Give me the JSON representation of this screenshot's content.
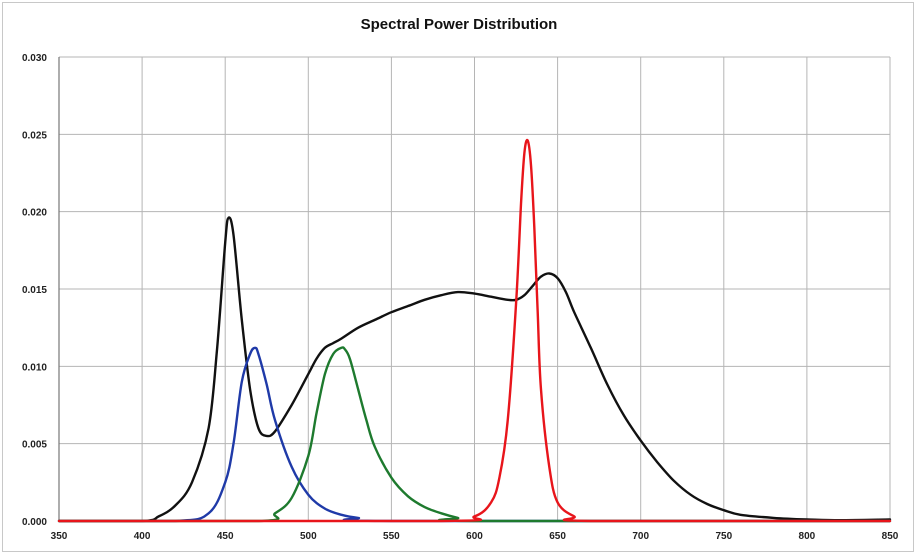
{
  "chart_data": {
    "type": "line",
    "title": "Spectral Power Distribution",
    "xlabel": "",
    "ylabel": "",
    "xlim": [
      350,
      850
    ],
    "ylim": [
      0,
      0.03
    ],
    "x_ticks": [
      350,
      400,
      450,
      500,
      550,
      600,
      650,
      700,
      750,
      800,
      850
    ],
    "y_ticks": [
      "0.000",
      "0.005",
      "0.010",
      "0.015",
      "0.020",
      "0.025",
      "0.030"
    ],
    "grid": true,
    "legend": "none",
    "series": [
      {
        "color": "#111111",
        "x": [
          350,
          400,
          410,
          420,
          430,
          440,
          445,
          450,
          452,
          455,
          460,
          465,
          470,
          475,
          480,
          490,
          500,
          505,
          510,
          515,
          520,
          530,
          540,
          550,
          560,
          570,
          580,
          590,
          600,
          610,
          620,
          625,
          630,
          635,
          640,
          645,
          650,
          655,
          660,
          670,
          680,
          690,
          700,
          710,
          720,
          730,
          740,
          750,
          760,
          780,
          800,
          820,
          850
        ],
        "y": [
          0,
          0,
          0.0003,
          0.001,
          0.0025,
          0.006,
          0.011,
          0.018,
          0.0196,
          0.0185,
          0.013,
          0.0085,
          0.006,
          0.0055,
          0.0058,
          0.0075,
          0.0095,
          0.0105,
          0.0112,
          0.0115,
          0.0118,
          0.0125,
          0.013,
          0.0135,
          0.0139,
          0.0143,
          0.0146,
          0.0148,
          0.0147,
          0.0145,
          0.0143,
          0.0143,
          0.0146,
          0.0152,
          0.0158,
          0.016,
          0.0157,
          0.0148,
          0.0135,
          0.0112,
          0.0088,
          0.0068,
          0.0052,
          0.0038,
          0.0026,
          0.0017,
          0.0011,
          0.0007,
          0.0004,
          0.0002,
          0.0001,
          5e-05,
          0.0001
        ]
      },
      {
        "color": "#1f3aa8",
        "x": [
          350,
          420,
          440,
          450,
          455,
          460,
          465,
          468,
          470,
          475,
          480,
          490,
          500,
          510,
          520,
          530,
          550,
          850
        ],
        "y": [
          0,
          0,
          0.0005,
          0.0025,
          0.005,
          0.009,
          0.0108,
          0.0112,
          0.0108,
          0.0088,
          0.0065,
          0.0035,
          0.0017,
          0.0008,
          0.0004,
          0.0002,
          0,
          0
        ]
      },
      {
        "color": "#1e7a2e",
        "x": [
          350,
          470,
          480,
          490,
          500,
          505,
          510,
          515,
          520,
          522,
          525,
          530,
          535,
          540,
          550,
          560,
          570,
          580,
          590,
          600,
          850
        ],
        "y": [
          0,
          0,
          0.0005,
          0.0015,
          0.0042,
          0.007,
          0.0095,
          0.0108,
          0.0112,
          0.0111,
          0.0105,
          0.0085,
          0.0065,
          0.0048,
          0.0028,
          0.0016,
          0.0009,
          0.0005,
          0.0002,
          0,
          0
        ]
      },
      {
        "color": "#e8151b",
        "x": [
          350,
          580,
          600,
          610,
          615,
          620,
          625,
          628,
          630,
          632,
          634,
          636,
          638,
          640,
          645,
          650,
          660,
          670,
          850
        ],
        "y": [
          0,
          0,
          0.0003,
          0.0012,
          0.0028,
          0.0065,
          0.014,
          0.0205,
          0.0238,
          0.0246,
          0.023,
          0.019,
          0.0135,
          0.0085,
          0.0035,
          0.0012,
          0.0003,
          0,
          0
        ]
      }
    ]
  }
}
